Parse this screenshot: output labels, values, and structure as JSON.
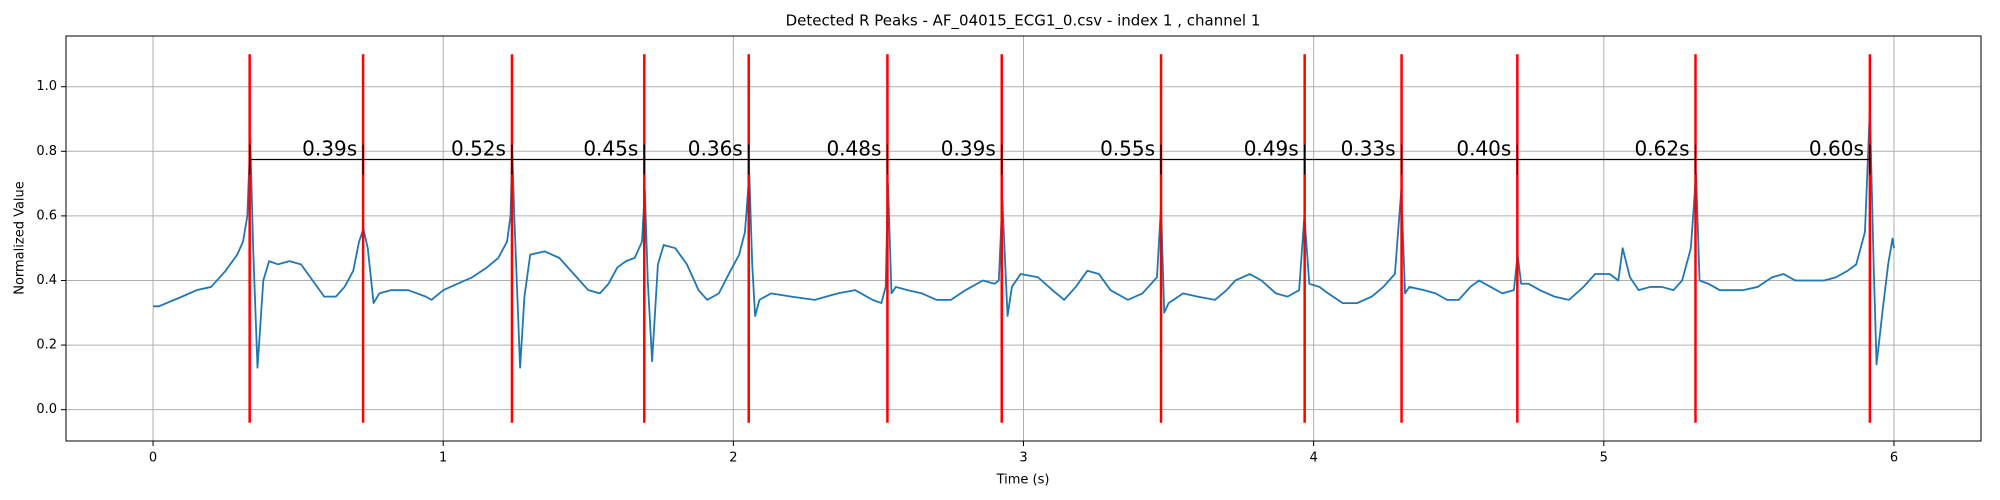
{
  "chart_data": {
    "type": "line",
    "title": "Detected R Peaks - AF_04015_ECG1_0.csv - index 1 , channel 1",
    "xlabel": "Time (s)",
    "ylabel": "Normalized Value",
    "xlim": [
      -0.3,
      6.3
    ],
    "ylim": [
      -0.097,
      1.157
    ],
    "xticks": [
      0,
      1,
      2,
      3,
      4,
      5,
      6
    ],
    "yticks": [
      {
        "value": 0,
        "label": "0.0"
      },
      0.2,
      0.4,
      0.6,
      0.8,
      {
        "value": 1,
        "label": "1.0"
      }
    ],
    "grid": true,
    "x": [
      0,
      0.02,
      0.1,
      0.15,
      0.2,
      0.25,
      0.29,
      0.31,
      0.325,
      0.335,
      0.345,
      0.36,
      0.38,
      0.4,
      0.43,
      0.47,
      0.51,
      0.55,
      0.59,
      0.63,
      0.66,
      0.69,
      0.71,
      0.725,
      0.74,
      0.76,
      0.78,
      0.82,
      0.88,
      0.94,
      0.96,
      1.0,
      1.05,
      1.1,
      1.15,
      1.19,
      1.22,
      1.232,
      1.238,
      1.245,
      1.265,
      1.28,
      1.3,
      1.35,
      1.4,
      1.45,
      1.5,
      1.54,
      1.57,
      1.6,
      1.63,
      1.66,
      1.685,
      1.695,
      1.705,
      1.72,
      1.74,
      1.76,
      1.8,
      1.84,
      1.88,
      1.91,
      1.95,
      1.99,
      2.02,
      2.04,
      2.055,
      2.065,
      2.075,
      2.09,
      2.13,
      2.2,
      2.28,
      2.36,
      2.42,
      2.48,
      2.51,
      2.525,
      2.533,
      2.545,
      2.56,
      2.6,
      2.65,
      2.7,
      2.75,
      2.8,
      2.86,
      2.9,
      2.915,
      2.927,
      2.945,
      2.96,
      2.99,
      3.05,
      3.1,
      3.14,
      3.18,
      3.22,
      3.26,
      3.3,
      3.36,
      3.41,
      3.46,
      3.474,
      3.485,
      3.5,
      3.55,
      3.6,
      3.66,
      3.7,
      3.73,
      3.78,
      3.82,
      3.87,
      3.91,
      3.95,
      3.968,
      3.985,
      4.02,
      4.05,
      4.1,
      4.15,
      4.2,
      4.24,
      4.28,
      4.302,
      4.315,
      4.33,
      4.38,
      4.42,
      4.46,
      4.5,
      4.54,
      4.57,
      4.61,
      4.65,
      4.69,
      4.703,
      4.715,
      4.74,
      4.78,
      4.83,
      4.88,
      4.93,
      4.97,
      5.02,
      5.05,
      5.065,
      5.09,
      5.12,
      5.16,
      5.2,
      5.24,
      5.27,
      5.3,
      5.318,
      5.33,
      5.36,
      5.4,
      5.48,
      5.53,
      5.58,
      5.62,
      5.66,
      5.72,
      5.76,
      5.8,
      5.84,
      5.87,
      5.9,
      5.917,
      5.93,
      5.94,
      5.96,
      5.98,
      5.995,
      6.0
    ],
    "series": [
      {
        "color": "#1f77b4",
        "values": [
          0.32,
          0.32,
          0.35,
          0.37,
          0.38,
          0.43,
          0.48,
          0.52,
          0.6,
          0.84,
          0.5,
          0.13,
          0.4,
          0.46,
          0.45,
          0.46,
          0.45,
          0.4,
          0.35,
          0.35,
          0.38,
          0.43,
          0.52,
          0.56,
          0.5,
          0.33,
          0.36,
          0.37,
          0.37,
          0.35,
          0.34,
          0.37,
          0.39,
          0.41,
          0.44,
          0.47,
          0.52,
          0.6,
          0.8,
          0.6,
          0.13,
          0.35,
          0.48,
          0.49,
          0.47,
          0.42,
          0.37,
          0.36,
          0.39,
          0.44,
          0.46,
          0.47,
          0.52,
          0.68,
          0.4,
          0.15,
          0.45,
          0.51,
          0.5,
          0.45,
          0.37,
          0.34,
          0.36,
          0.43,
          0.48,
          0.55,
          0.73,
          0.45,
          0.29,
          0.34,
          0.36,
          0.35,
          0.34,
          0.36,
          0.37,
          0.34,
          0.33,
          0.38,
          0.7,
          0.36,
          0.38,
          0.37,
          0.36,
          0.34,
          0.34,
          0.37,
          0.4,
          0.39,
          0.4,
          0.65,
          0.29,
          0.38,
          0.42,
          0.41,
          0.37,
          0.34,
          0.38,
          0.43,
          0.42,
          0.37,
          0.34,
          0.36,
          0.41,
          0.63,
          0.3,
          0.33,
          0.36,
          0.35,
          0.34,
          0.37,
          0.4,
          0.42,
          0.4,
          0.36,
          0.35,
          0.37,
          0.6,
          0.39,
          0.38,
          0.36,
          0.33,
          0.33,
          0.35,
          0.38,
          0.42,
          0.68,
          0.36,
          0.38,
          0.37,
          0.36,
          0.34,
          0.34,
          0.38,
          0.4,
          0.38,
          0.36,
          0.37,
          0.48,
          0.39,
          0.39,
          0.37,
          0.35,
          0.34,
          0.38,
          0.42,
          0.42,
          0.4,
          0.5,
          0.41,
          0.37,
          0.38,
          0.38,
          0.37,
          0.4,
          0.5,
          0.73,
          0.4,
          0.39,
          0.37,
          0.37,
          0.38,
          0.41,
          0.42,
          0.4,
          0.4,
          0.4,
          0.41,
          0.43,
          0.45,
          0.55,
          0.93,
          0.45,
          0.14,
          0.3,
          0.45,
          0.53,
          0.5
        ]
      }
    ],
    "peaks": {
      "color": "#ff0000",
      "x": [
        0.333,
        0.724,
        1.237,
        1.693,
        2.053,
        2.531,
        2.925,
        3.474,
        3.969,
        4.303,
        4.702,
        5.316,
        5.917
      ]
    },
    "intervals": {
      "values": [
        0.39,
        0.52,
        0.45,
        0.36,
        0.48,
        0.39,
        0.55,
        0.49,
        0.33,
        0.4,
        0.62,
        0.6
      ],
      "value_labels": [
        "0.39s",
        "0.52s",
        "0.45s",
        "0.36s",
        "0.48s",
        "0.39s",
        "0.55s",
        "0.49s",
        "0.33s",
        "0.40s",
        "0.62s",
        "0.60s"
      ]
    }
  }
}
